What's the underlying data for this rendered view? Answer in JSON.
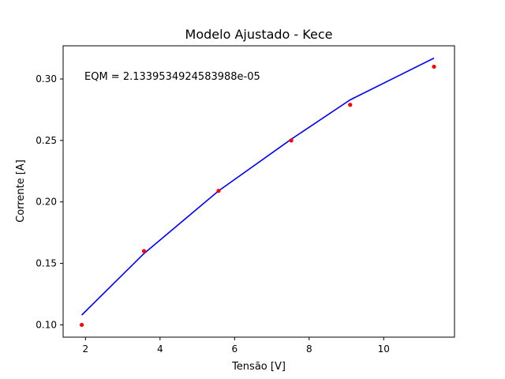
{
  "chart_data": {
    "type": "scatter",
    "title": "Modelo Ajustado - Kece",
    "xlabel": "Tensão [V]",
    "ylabel": "Corrente [A]",
    "annotation": "EQM = 2.1339534924583988e-05",
    "xlim": [
      1.4,
      11.9
    ],
    "ylim": [
      0.09,
      0.327
    ],
    "grid": false,
    "x_ticks": [
      2,
      4,
      6,
      8,
      10
    ],
    "y_ticks": [
      0.1,
      0.15,
      0.2,
      0.25,
      0.3
    ],
    "x_tick_labels": [
      "2",
      "4",
      "6",
      "8",
      "10"
    ],
    "y_tick_labels": [
      "0.10",
      "0.15",
      "0.20",
      "0.25",
      "0.30"
    ],
    "series": [
      {
        "kind": "points",
        "color": "#ff0000",
        "x": [
          1.9,
          3.57,
          5.57,
          7.52,
          9.1,
          11.35
        ],
        "y": [
          0.1,
          0.16,
          0.209,
          0.25,
          0.279,
          0.31
        ]
      },
      {
        "kind": "line",
        "color": "#0000ff",
        "x": [
          1.9,
          3.57,
          5.57,
          7.52,
          9.1,
          11.35
        ],
        "y": [
          0.108,
          0.158,
          0.209,
          0.251,
          0.283,
          0.317
        ]
      }
    ]
  }
}
